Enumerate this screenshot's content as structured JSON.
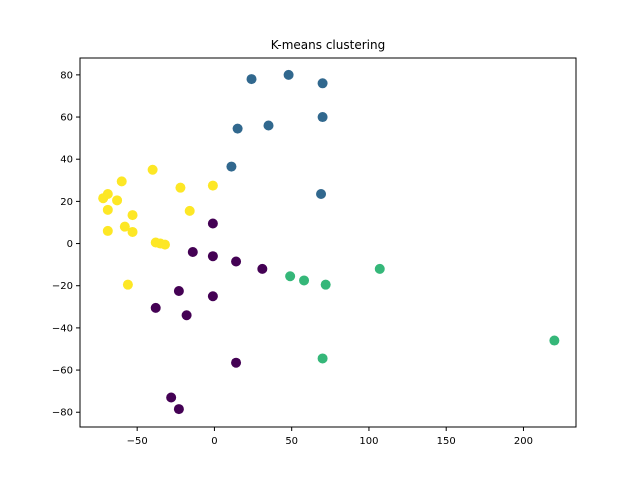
{
  "chart_data": {
    "type": "scatter",
    "title": "K-means clustering",
    "xlabel": "",
    "ylabel": "",
    "xlim": [
      -87,
      234
    ],
    "ylim": [
      -87,
      88
    ],
    "xticks": [
      -50,
      0,
      50,
      100,
      150,
      200
    ],
    "yticks": [
      -80,
      -60,
      -40,
      -20,
      0,
      20,
      40,
      60,
      80
    ],
    "grid": false,
    "series": [
      {
        "color": "#440154",
        "points": [
          [
            -1,
            9.5
          ],
          [
            -14,
            -4
          ],
          [
            -1,
            -6
          ],
          [
            14,
            -8.5
          ],
          [
            31,
            -12
          ],
          [
            -23,
            -22.5
          ],
          [
            -1,
            -25
          ],
          [
            -38,
            -30.5
          ],
          [
            -18,
            -34
          ],
          [
            14,
            -56.5
          ],
          [
            -28,
            -73
          ],
          [
            -23,
            -78.5
          ]
        ]
      },
      {
        "color": "#31688e",
        "points": [
          [
            24,
            78
          ],
          [
            48,
            80
          ],
          [
            70,
            76
          ],
          [
            15,
            54.5
          ],
          [
            35,
            56
          ],
          [
            70,
            60
          ],
          [
            11,
            36.5
          ],
          [
            69,
            23.5
          ]
        ]
      },
      {
        "color": "#35b779",
        "points": [
          [
            49,
            -15.5
          ],
          [
            58,
            -17.5
          ],
          [
            72,
            -19.5
          ],
          [
            107,
            -12
          ],
          [
            70,
            -54.5
          ],
          [
            220,
            -46
          ]
        ]
      },
      {
        "color": "#fde725",
        "points": [
          [
            -60,
            29.5
          ],
          [
            -40,
            35
          ],
          [
            -22,
            26.5
          ],
          [
            -1,
            27.5
          ],
          [
            -69,
            23.5
          ],
          [
            -72,
            21.5
          ],
          [
            -63,
            20.5
          ],
          [
            -69,
            16
          ],
          [
            -16,
            15.5
          ],
          [
            -53,
            13.5
          ],
          [
            -58,
            8
          ],
          [
            -69,
            6
          ],
          [
            -53,
            5.5
          ],
          [
            -38,
            0.5
          ],
          [
            -35,
            0
          ],
          [
            -32,
            -0.5
          ],
          [
            -56,
            -19.5
          ]
        ]
      }
    ]
  }
}
